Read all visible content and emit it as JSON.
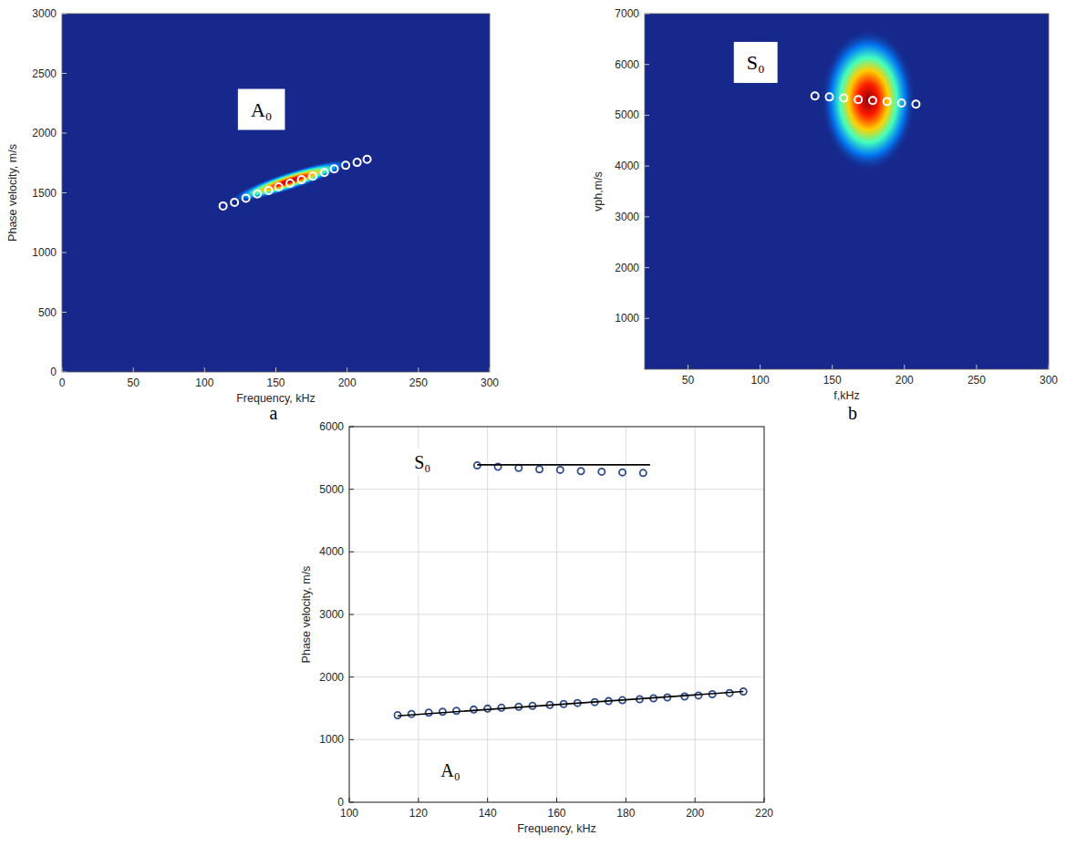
{
  "chart_data": [
    {
      "type": "heatmap",
      "panel_label": "a",
      "x_label": "Frequency, kHz",
      "y_label": "Phase velocity, m/s",
      "xlim": [
        0,
        300
      ],
      "xticks": [
        0,
        50,
        100,
        150,
        200,
        250,
        300
      ],
      "ylim": [
        0,
        3000
      ],
      "yticks": [
        0,
        500,
        1000,
        1500,
        2000,
        2500,
        3000
      ],
      "heatmap_peak": {
        "x": 160,
        "y": 1600
      },
      "series": [
        {
          "name": "A₀",
          "type": "scatter",
          "marker": "circle",
          "color": "#ffffff",
          "x": [
            113,
            121,
            129,
            137,
            145,
            152,
            160,
            168,
            176,
            184,
            191,
            199,
            207,
            214
          ],
          "values": [
            1390,
            1420,
            1455,
            1490,
            1520,
            1550,
            1580,
            1610,
            1640,
            1670,
            1700,
            1730,
            1755,
            1780
          ]
        }
      ]
    },
    {
      "type": "heatmap",
      "panel_label": "b",
      "x_label": "f,kHz",
      "y_label": "vph,m/s",
      "xlim": [
        20,
        300
      ],
      "xticks": [
        50,
        100,
        150,
        200,
        250,
        300
      ],
      "ylim": [
        0,
        7000
      ],
      "yticks": [
        1000,
        2000,
        3000,
        4000,
        5000,
        6000,
        7000
      ],
      "heatmap_peak": {
        "x": 175,
        "y": 5300
      },
      "series": [
        {
          "name": "S₀",
          "type": "scatter",
          "marker": "circle",
          "color": "#ffffff",
          "x": [
            138,
            148,
            158,
            168,
            178,
            188,
            198,
            208
          ],
          "values": [
            5380,
            5360,
            5340,
            5310,
            5290,
            5270,
            5240,
            5220
          ]
        }
      ]
    },
    {
      "type": "scatter",
      "x_label": "Frequency, kHz",
      "y_label": "Phase velocity, m/s",
      "xlim": [
        100,
        220
      ],
      "xticks": [
        100,
        120,
        140,
        160,
        180,
        200,
        220
      ],
      "ylim": [
        0,
        6000
      ],
      "yticks": [
        0,
        1000,
        2000,
        3000,
        4000,
        5000,
        6000
      ],
      "grid": true,
      "series": [
        {
          "name": "S₀",
          "type": "scatter",
          "marker": "circle",
          "color": "#2f4b8a",
          "x": [
            137,
            143,
            149,
            155,
            161,
            167,
            173,
            179,
            185
          ],
          "values": [
            5380,
            5360,
            5340,
            5320,
            5310,
            5290,
            5280,
            5270,
            5260
          ]
        },
        {
          "type": "line",
          "line_style": "solid",
          "color": "#000000",
          "x": [
            137,
            187
          ],
          "values": [
            5390,
            5390
          ]
        },
        {
          "name": "A₀",
          "type": "scatter",
          "marker": "circle",
          "color": "#2f4b8a",
          "x": [
            114,
            118,
            123,
            127,
            131,
            136,
            140,
            144,
            149,
            153,
            158,
            162,
            166,
            171,
            175,
            179,
            184,
            188,
            192,
            197,
            201,
            205,
            210,
            214
          ],
          "values": [
            1390,
            1410,
            1430,
            1445,
            1460,
            1480,
            1495,
            1510,
            1525,
            1540,
            1555,
            1570,
            1585,
            1600,
            1615,
            1630,
            1645,
            1660,
            1675,
            1690,
            1705,
            1725,
            1745,
            1770
          ]
        },
        {
          "type": "line",
          "line_style": "solid",
          "color": "#000000",
          "x": [
            114,
            214
          ],
          "values": [
            1380,
            1770
          ]
        }
      ]
    }
  ]
}
